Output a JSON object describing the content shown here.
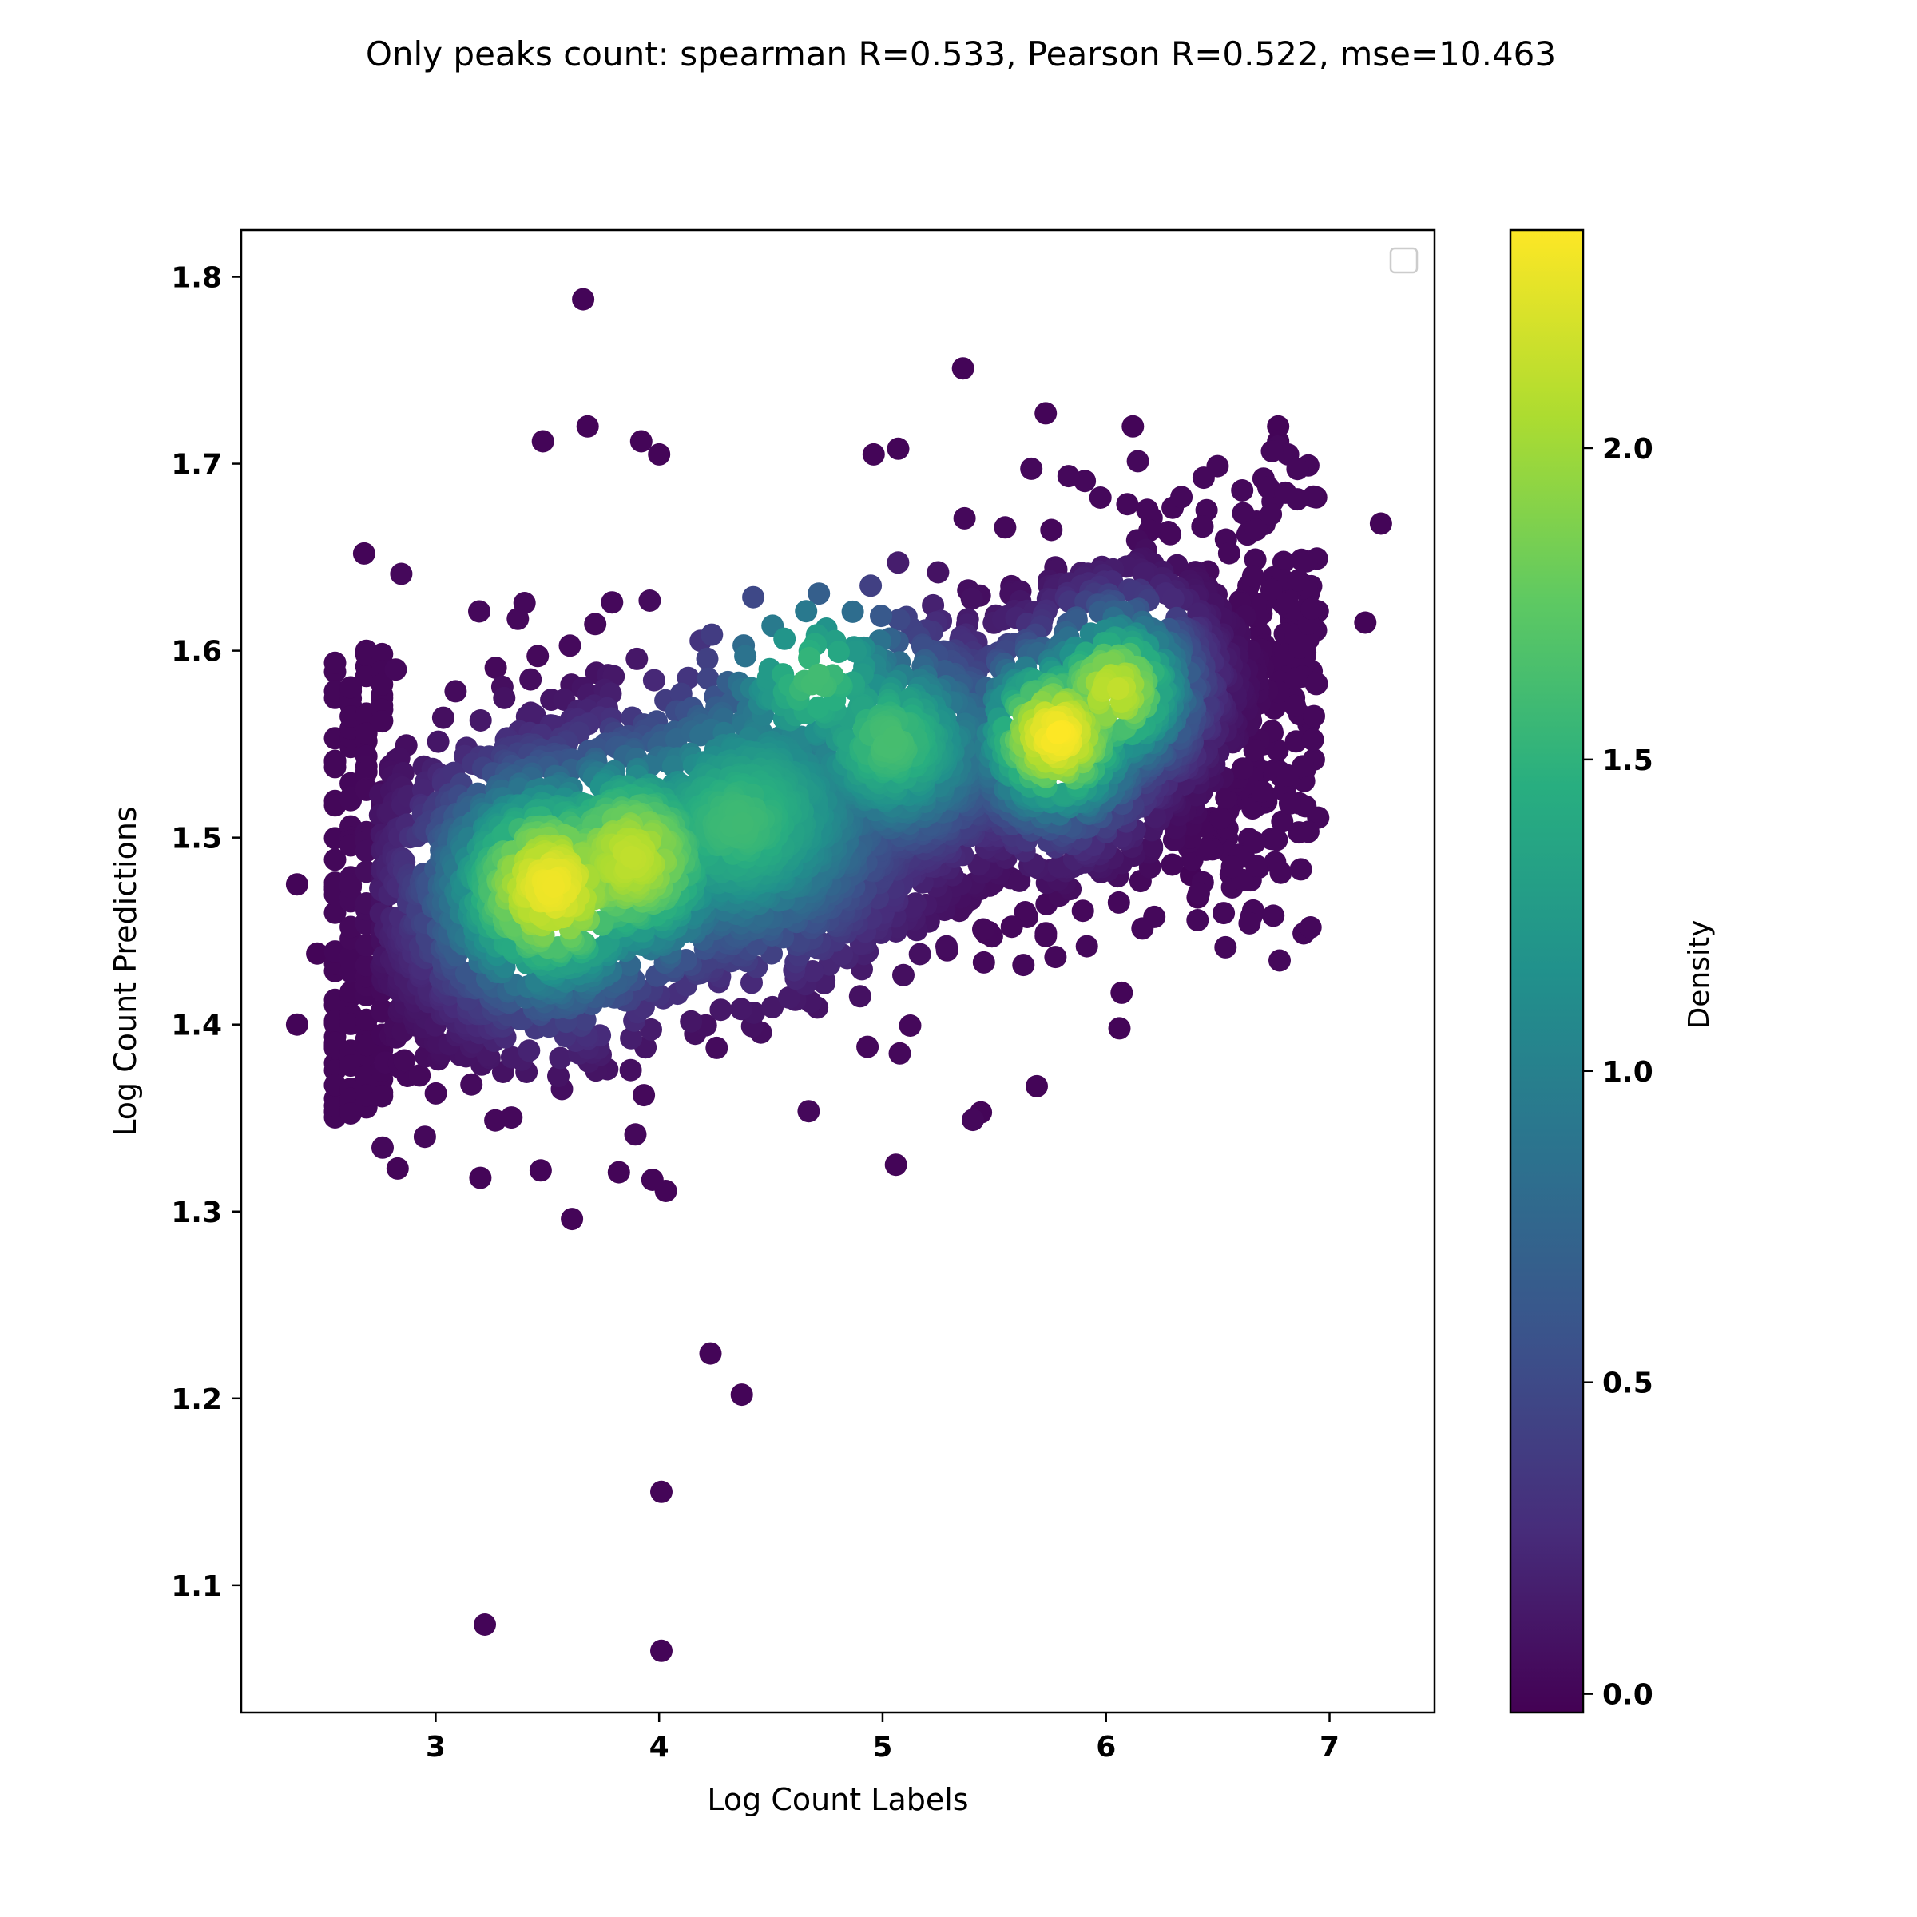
{
  "chart_data": {
    "type": "scatter",
    "title": "Only peaks count: spearman R=0.533, Pearson R=0.522, mse=10.463",
    "xlabel": "Log Count Labels",
    "ylabel": "Log Count Predictions",
    "xlim": [
      2.13,
      7.47
    ],
    "ylim": [
      1.032,
      1.825
    ],
    "xticks": [
      3,
      4,
      5,
      6,
      7
    ],
    "yticks": [
      1.1,
      1.2,
      1.3,
      1.4,
      1.5,
      1.6,
      1.7,
      1.8
    ],
    "ytick_labels": [
      "1.1",
      "1.2",
      "1.3",
      "1.4",
      "1.5",
      "1.6",
      "1.7",
      "1.8"
    ],
    "legend": "top-right (empty)",
    "grid": false,
    "colormap": "viridis",
    "colorbar": {
      "label": "Density",
      "range": [
        -0.03,
        2.35
      ],
      "ticks": [
        0.0,
        0.5,
        1.0,
        1.5,
        2.0
      ],
      "tick_labels": [
        "0.0",
        "0.5",
        "1.0",
        "1.5",
        "2.0"
      ]
    },
    "density_clusters": [
      {
        "x": 3.52,
        "y": 1.474,
        "density": 2.3
      },
      {
        "x": 3.9,
        "y": 1.49,
        "density": 1.95
      },
      {
        "x": 5.78,
        "y": 1.555,
        "density": 2.35
      },
      {
        "x": 6.05,
        "y": 1.58,
        "density": 2.0
      },
      {
        "x": 4.7,
        "y": 1.585,
        "density": 1.6
      },
      {
        "x": 5.05,
        "y": 1.55,
        "density": 1.55
      },
      {
        "x": 4.4,
        "y": 1.51,
        "density": 1.5
      }
    ],
    "outlier_points": [
      {
        "x": 3.66,
        "y": 1.788
      },
      {
        "x": 5.36,
        "y": 1.751
      },
      {
        "x": 5.73,
        "y": 1.727
      },
      {
        "x": 3.68,
        "y": 1.72
      },
      {
        "x": 3.48,
        "y": 1.712
      },
      {
        "x": 3.92,
        "y": 1.712
      },
      {
        "x": 4.0,
        "y": 1.705
      },
      {
        "x": 6.77,
        "y": 1.72
      },
      {
        "x": 6.77,
        "y": 1.712
      },
      {
        "x": 6.12,
        "y": 1.72
      },
      {
        "x": 5.07,
        "y": 1.708
      },
      {
        "x": 4.96,
        "y": 1.705
      },
      {
        "x": 2.68,
        "y": 1.652
      },
      {
        "x": 7.23,
        "y": 1.668
      },
      {
        "x": 7.16,
        "y": 1.615
      },
      {
        "x": 6.94,
        "y": 1.682
      },
      {
        "x": 2.38,
        "y": 1.475
      },
      {
        "x": 2.38,
        "y": 1.4
      },
      {
        "x": 2.47,
        "y": 1.438
      },
      {
        "x": 6.41,
        "y": 1.468
      },
      {
        "x": 6.38,
        "y": 1.48
      },
      {
        "x": 6.06,
        "y": 1.398
      },
      {
        "x": 6.07,
        "y": 1.417
      },
      {
        "x": 5.69,
        "y": 1.367
      },
      {
        "x": 5.44,
        "y": 1.353
      },
      {
        "x": 5.06,
        "y": 1.325
      },
      {
        "x": 3.61,
        "y": 1.296
      },
      {
        "x": 4.03,
        "y": 1.311
      },
      {
        "x": 3.97,
        "y": 1.317
      },
      {
        "x": 4.23,
        "y": 1.224
      },
      {
        "x": 4.37,
        "y": 1.202
      },
      {
        "x": 4.01,
        "y": 1.15
      },
      {
        "x": 3.22,
        "y": 1.079
      },
      {
        "x": 4.01,
        "y": 1.065
      },
      {
        "x": 2.83,
        "y": 1.323
      },
      {
        "x": 3.2,
        "y": 1.318
      },
      {
        "x": 3.47,
        "y": 1.322
      },
      {
        "x": 3.82,
        "y": 1.321
      }
    ]
  }
}
